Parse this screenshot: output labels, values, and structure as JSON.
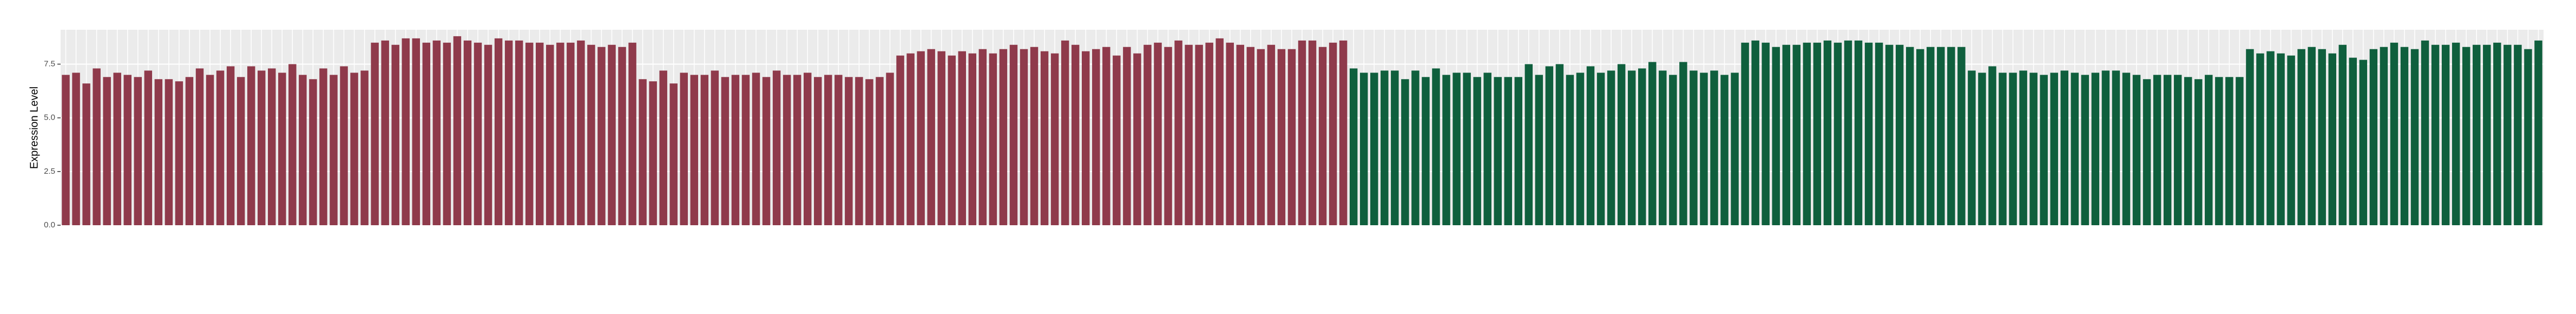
{
  "chart_data": {
    "type": "bar",
    "y_label": "Expression Level",
    "ylim": [
      0,
      9.1
    ],
    "yticks": [
      {
        "value": 0,
        "label": "0.0"
      },
      2.5,
      {
        "value": 5,
        "label": "5.0"
      },
      7.5
    ],
    "grid": true,
    "categories": [
      null,
      null,
      null,
      null,
      null,
      null,
      null,
      null,
      null,
      null,
      null,
      null,
      null,
      null,
      null,
      null,
      null,
      null,
      null,
      null,
      null,
      null,
      null,
      null,
      null,
      null,
      null,
      null,
      null,
      null,
      null,
      null,
      null,
      null,
      null,
      null,
      null,
      null,
      null,
      null,
      null,
      null,
      null,
      null,
      null,
      null,
      null,
      null,
      null,
      null,
      null,
      null,
      null,
      null,
      null,
      null,
      null,
      null,
      null,
      null,
      null,
      null,
      null,
      null,
      null,
      null,
      null,
      null,
      null,
      null,
      null,
      null,
      null,
      null,
      null,
      null,
      null,
      null,
      null,
      null,
      null,
      null,
      null,
      null,
      null,
      null,
      null,
      null,
      null,
      null,
      null,
      null,
      null,
      null,
      null,
      null,
      null,
      null,
      null,
      null,
      null,
      null,
      null,
      null,
      null,
      null,
      null,
      null,
      null,
      null,
      null,
      null,
      null,
      null,
      null,
      null,
      null,
      null,
      null,
      null,
      null,
      null,
      null,
      null,
      null,
      null,
      null,
      null,
      null,
      null,
      null,
      null,
      null,
      null,
      null,
      null,
      null,
      null,
      null,
      null,
      null,
      null,
      null,
      null,
      null,
      null,
      null,
      null,
      null,
      null,
      null,
      null,
      null,
      null,
      null,
      null,
      null,
      null,
      null,
      null,
      null,
      null,
      null,
      null,
      null,
      null,
      null,
      null,
      null,
      null,
      null,
      null,
      null,
      null,
      null,
      null,
      null,
      null,
      null,
      null,
      null,
      null,
      null,
      null,
      null,
      null,
      null,
      null,
      null,
      null,
      null,
      null,
      null,
      null,
      null,
      null,
      null,
      null,
      null,
      null,
      null,
      null,
      null,
      null,
      null,
      null,
      null,
      null,
      null,
      null,
      null,
      null,
      null,
      null,
      null,
      null,
      null,
      null,
      null,
      null,
      null,
      null,
      null,
      null,
      null,
      null,
      null,
      null,
      null,
      null,
      null,
      null,
      null,
      null,
      null,
      null,
      null,
      null,
      null,
      null,
      null
    ],
    "series": [
      {
        "color": "#8f3a4b",
        "values": [
          7.0,
          7.1,
          6.6,
          7.3,
          6.9,
          7.1,
          7.0,
          6.9,
          7.2,
          6.8,
          6.8,
          6.7,
          6.9,
          7.3,
          7.0,
          7.2,
          7.4,
          6.9,
          7.4,
          7.2,
          7.3,
          7.1,
          7.5,
          7.0,
          6.8,
          7.3,
          7.0,
          7.4,
          7.1,
          7.2,
          8.5,
          8.6,
          8.4,
          8.7,
          8.7,
          8.5,
          8.6,
          8.5,
          8.8,
          8.6,
          8.5,
          8.4,
          8.7,
          8.6,
          8.6,
          8.5,
          8.5,
          8.4,
          8.5,
          8.5,
          8.6,
          8.4,
          8.3,
          8.4,
          8.3,
          8.5,
          6.8,
          6.7,
          7.2,
          6.6,
          7.1,
          7.0,
          7.0,
          7.2,
          6.9,
          7.0,
          7.0,
          7.1,
          6.9,
          7.2,
          7.0,
          7.0,
          7.1,
          6.9,
          7.0,
          7.0,
          6.9,
          6.9,
          6.8,
          6.9,
          7.1,
          7.9,
          8.0,
          8.1,
          8.2,
          8.1,
          7.9,
          8.1,
          8.0,
          8.2,
          8.0,
          8.2,
          8.4,
          8.2,
          8.3,
          8.1,
          8.0,
          8.6,
          8.4,
          8.1,
          8.2,
          8.3,
          7.9,
          8.3,
          8.0,
          8.4,
          8.5,
          8.3,
          8.6,
          8.4,
          8.4,
          8.5,
          8.7,
          8.5,
          8.4,
          8.3,
          8.2,
          8.4,
          8.2,
          8.2,
          8.6,
          8.6,
          8.3,
          8.5,
          8.6,
          null,
          null,
          null,
          null,
          null,
          null,
          null,
          null,
          null,
          null,
          null,
          null,
          null,
          null,
          null,
          null,
          null,
          null,
          null,
          null,
          null,
          null,
          null,
          null,
          null,
          null,
          null,
          null,
          null,
          null,
          null,
          null,
          null,
          null,
          null,
          null,
          null,
          null,
          null,
          null,
          null,
          null,
          null,
          null,
          null,
          null,
          null,
          null,
          null,
          null,
          null,
          null,
          null,
          null,
          null,
          null,
          null,
          null,
          null,
          null,
          null,
          null,
          null,
          null,
          null,
          null,
          null,
          null,
          null,
          null,
          null,
          null,
          null,
          null,
          null,
          null,
          null,
          null,
          null,
          null,
          null,
          null,
          null,
          null,
          null,
          null,
          null,
          null,
          null,
          null,
          null,
          null,
          null,
          null,
          null,
          null,
          null,
          null,
          null,
          null,
          null,
          null,
          null,
          null,
          null,
          null,
          null,
          null,
          null,
          null,
          null,
          null,
          null,
          null,
          null,
          null
        ]
      },
      {
        "color": "#0f5f3d",
        "values": [
          null,
          null,
          null,
          null,
          null,
          null,
          null,
          null,
          null,
          null,
          null,
          null,
          null,
          null,
          null,
          null,
          null,
          null,
          null,
          null,
          null,
          null,
          null,
          null,
          null,
          null,
          null,
          null,
          null,
          null,
          null,
          null,
          null,
          null,
          null,
          null,
          null,
          null,
          null,
          null,
          null,
          null,
          null,
          null,
          null,
          null,
          null,
          null,
          null,
          null,
          null,
          null,
          null,
          null,
          null,
          null,
          null,
          null,
          null,
          null,
          null,
          null,
          null,
          null,
          null,
          null,
          null,
          null,
          null,
          null,
          null,
          null,
          null,
          null,
          null,
          null,
          null,
          null,
          null,
          null,
          null,
          null,
          null,
          null,
          null,
          null,
          null,
          null,
          null,
          null,
          null,
          null,
          null,
          null,
          null,
          null,
          null,
          null,
          null,
          null,
          null,
          null,
          null,
          null,
          null,
          null,
          null,
          null,
          null,
          null,
          null,
          null,
          null,
          null,
          null,
          null,
          null,
          null,
          null,
          null,
          null,
          null,
          null,
          null,
          null,
          7.3,
          7.1,
          7.1,
          7.2,
          7.2,
          6.8,
          7.2,
          6.9,
          7.3,
          7.0,
          7.1,
          7.1,
          6.9,
          7.1,
          6.9,
          6.9,
          6.9,
          7.5,
          7.0,
          7.4,
          7.5,
          7.0,
          7.1,
          7.4,
          7.1,
          7.2,
          7.5,
          7.2,
          7.3,
          7.6,
          7.2,
          7.0,
          7.6,
          7.2,
          7.1,
          7.2,
          7.0,
          7.1,
          8.5,
          8.6,
          8.5,
          8.3,
          8.4,
          8.4,
          8.5,
          8.5,
          8.6,
          8.5,
          8.6,
          8.6,
          8.5,
          8.5,
          8.4,
          8.4,
          8.3,
          8.2,
          8.3,
          8.3,
          8.3,
          8.3,
          7.2,
          7.1,
          7.4,
          7.1,
          7.1,
          7.2,
          7.1,
          7.0,
          7.1,
          7.2,
          7.1,
          7.0,
          7.1,
          7.2,
          7.2,
          7.1,
          7.0,
          6.8,
          7.0,
          7.0,
          7.0,
          6.9,
          6.8,
          7.0,
          6.9,
          6.9,
          6.9,
          8.2,
          8.0,
          8.1,
          8.0,
          7.9,
          8.2,
          8.3,
          8.2,
          8.0,
          8.4,
          7.8,
          7.7,
          8.2,
          8.3,
          8.5,
          8.3,
          8.2,
          8.6,
          8.4,
          8.4,
          8.5,
          8.3,
          8.4,
          8.4,
          8.5,
          8.4,
          8.4,
          8.2,
          8.6
        ]
      }
    ]
  }
}
